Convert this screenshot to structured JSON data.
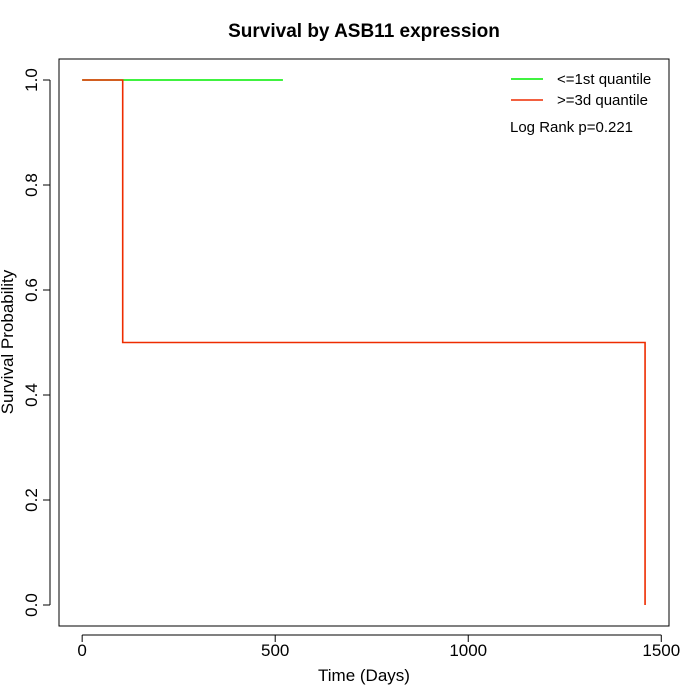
{
  "chart_data": {
    "type": "line",
    "title": "Survival by ASB11 expression",
    "xlabel": "Time (Days)",
    "ylabel": "Survival Probability",
    "xlim": [
      -60,
      1520
    ],
    "ylim": [
      -0.04,
      1.04
    ],
    "x_ticks": [
      0,
      500,
      1000,
      1500
    ],
    "y_ticks": [
      0.0,
      0.2,
      0.4,
      0.6,
      0.8,
      1.0
    ],
    "x_tick_labels": [
      "0",
      "500",
      "1000",
      "1500"
    ],
    "y_tick_labels": [
      "0.0",
      "0.2",
      "0.4",
      "0.6",
      "0.8",
      "1.0"
    ],
    "grid": false,
    "legend_position": "top-right",
    "series": [
      {
        "name": "<=1st quantile",
        "color": "#00ee00",
        "step": true,
        "x": [
          0,
          520
        ],
        "y": [
          1.0,
          1.0
        ]
      },
      {
        "name": ">=3d quantile",
        "color": "#ee2c00",
        "step": true,
        "x": [
          0,
          105,
          1458,
          1458
        ],
        "y": [
          1.0,
          0.5,
          0.5,
          0.0
        ]
      }
    ],
    "annotation": "Log Rank p=0.221"
  }
}
